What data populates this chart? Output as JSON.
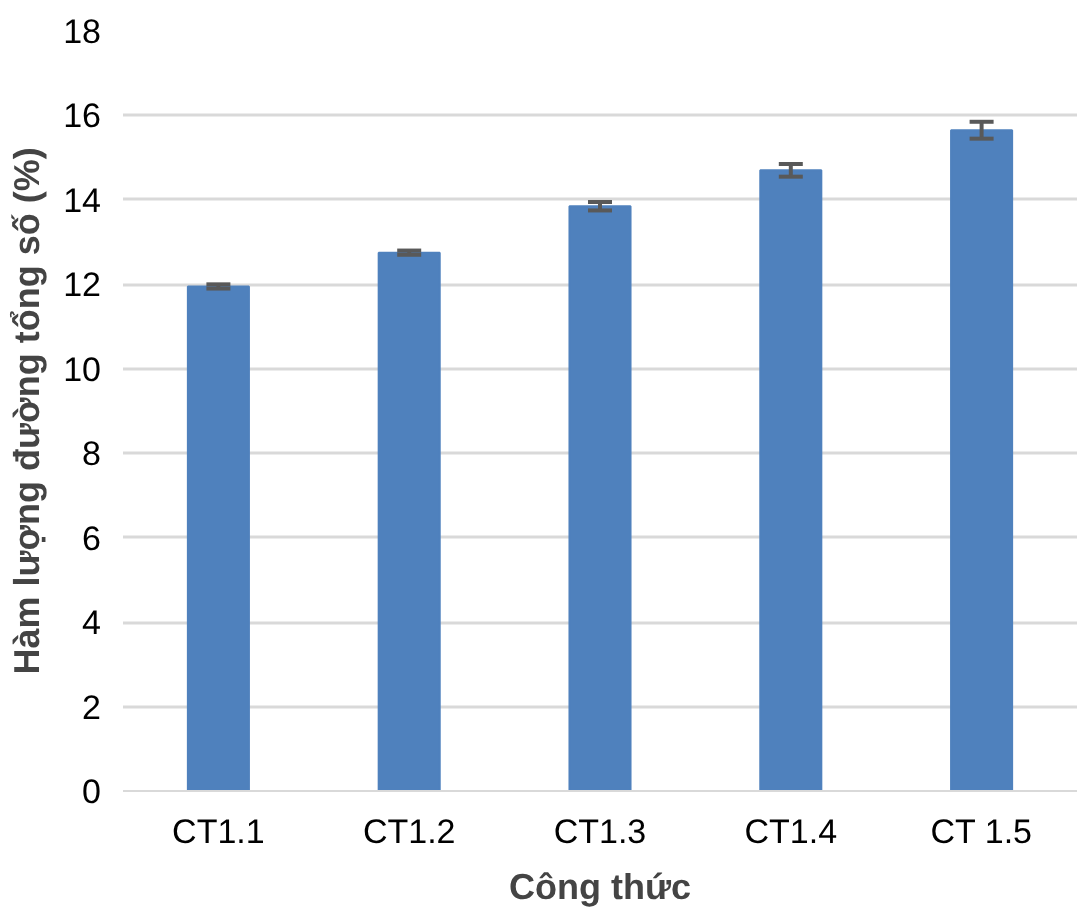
{
  "chart_data": {
    "type": "bar",
    "xlabel": "Công thức",
    "ylabel": "Hàm lượng đường tổng số (%)",
    "categories": [
      "CT1.1",
      "CT1.2",
      "CT1.3",
      "CT1.4",
      "CT 1.5"
    ],
    "values": [
      11.95,
      12.75,
      13.85,
      14.7,
      15.65
    ],
    "errors": [
      0.05,
      0.05,
      0.1,
      0.15,
      0.2
    ],
    "color": "#4f81bd",
    "ylim": [
      0,
      18
    ],
    "yticks": [
      0,
      2,
      4,
      6,
      8,
      10,
      12,
      14,
      16,
      18
    ],
    "grid": "y"
  }
}
